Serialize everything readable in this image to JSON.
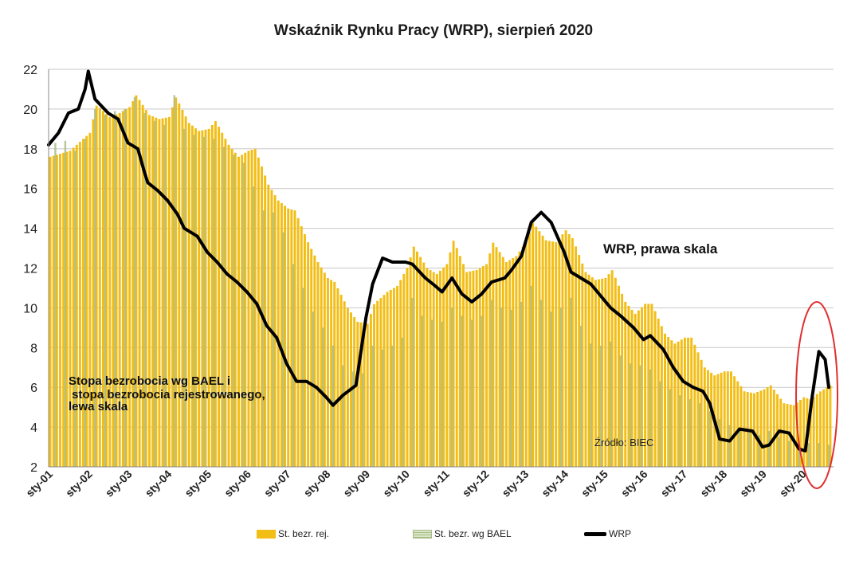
{
  "chart_data": {
    "type": "bar+line",
    "title": "Wskaźnik Rynku Pracy (WRP), sierpień 2020",
    "categories": [
      "sty-01",
      "sty-02",
      "sty-03",
      "sty-04",
      "sty-05",
      "sty-06",
      "sty-07",
      "sty-08",
      "sty-09",
      "sty-10",
      "sty-11",
      "sty-12",
      "sty-13",
      "sty-14",
      "sty-15",
      "sty-16",
      "sty-17",
      "sty-18",
      "sty-19",
      "sty-20"
    ],
    "ylim": [
      2,
      22
    ],
    "yticks": [
      2,
      4,
      6,
      8,
      10,
      12,
      14,
      16,
      18,
      20,
      22
    ],
    "grid": true,
    "x_start": 2001.0,
    "x_end": 2020.67,
    "series": [
      {
        "name": "St. bezr. rej.",
        "kind": "bar",
        "color": "#f2be16",
        "points": [
          [
            2001.0,
            17.6
          ],
          [
            2001.5,
            17.9
          ],
          [
            2002.0,
            18.8
          ],
          [
            2002.17,
            20.2
          ],
          [
            2002.5,
            19.6
          ],
          [
            2002.75,
            19.8
          ],
          [
            2003.0,
            20.1
          ],
          [
            2003.17,
            20.7
          ],
          [
            2003.5,
            19.7
          ],
          [
            2003.75,
            19.5
          ],
          [
            2004.0,
            19.6
          ],
          [
            2004.17,
            20.6
          ],
          [
            2004.5,
            19.3
          ],
          [
            2004.75,
            18.9
          ],
          [
            2005.0,
            19.0
          ],
          [
            2005.17,
            19.4
          ],
          [
            2005.5,
            18.2
          ],
          [
            2005.75,
            17.6
          ],
          [
            2006.0,
            17.9
          ],
          [
            2006.17,
            18.0
          ],
          [
            2006.5,
            16.2
          ],
          [
            2006.75,
            15.4
          ],
          [
            2007.0,
            15.0
          ],
          [
            2007.17,
            14.9
          ],
          [
            2007.5,
            13.3
          ],
          [
            2007.75,
            12.3
          ],
          [
            2008.0,
            11.5
          ],
          [
            2008.17,
            11.3
          ],
          [
            2008.5,
            10.0
          ],
          [
            2008.75,
            9.3
          ],
          [
            2009.0,
            9.2
          ],
          [
            2009.17,
            10.2
          ],
          [
            2009.5,
            10.8
          ],
          [
            2009.75,
            11.1
          ],
          [
            2010.0,
            12.0
          ],
          [
            2010.17,
            13.1
          ],
          [
            2010.5,
            12.0
          ],
          [
            2010.75,
            11.7
          ],
          [
            2011.0,
            12.2
          ],
          [
            2011.17,
            13.4
          ],
          [
            2011.5,
            11.8
          ],
          [
            2011.75,
            11.9
          ],
          [
            2012.0,
            12.2
          ],
          [
            2012.17,
            13.3
          ],
          [
            2012.5,
            12.3
          ],
          [
            2012.75,
            12.6
          ],
          [
            2013.0,
            13.3
          ],
          [
            2013.17,
            14.3
          ],
          [
            2013.5,
            13.4
          ],
          [
            2013.75,
            13.3
          ],
          [
            2014.0,
            13.9
          ],
          [
            2014.17,
            13.5
          ],
          [
            2014.5,
            11.8
          ],
          [
            2014.75,
            11.4
          ],
          [
            2015.0,
            11.5
          ],
          [
            2015.17,
            11.9
          ],
          [
            2015.5,
            10.3
          ],
          [
            2015.75,
            9.7
          ],
          [
            2016.0,
            10.2
          ],
          [
            2016.17,
            10.2
          ],
          [
            2016.5,
            8.7
          ],
          [
            2016.75,
            8.2
          ],
          [
            2017.0,
            8.5
          ],
          [
            2017.17,
            8.5
          ],
          [
            2017.5,
            7.0
          ],
          [
            2017.75,
            6.6
          ],
          [
            2018.0,
            6.8
          ],
          [
            2018.17,
            6.8
          ],
          [
            2018.5,
            5.8
          ],
          [
            2018.75,
            5.7
          ],
          [
            2019.0,
            5.9
          ],
          [
            2019.17,
            6.1
          ],
          [
            2019.5,
            5.2
          ],
          [
            2019.75,
            5.1
          ],
          [
            2020.0,
            5.5
          ],
          [
            2020.17,
            5.4
          ],
          [
            2020.42,
            5.8
          ],
          [
            2020.67,
            6.1
          ]
        ]
      },
      {
        "name": "St. bezr. wg BAEL",
        "kind": "bar",
        "color": "#a9bb86",
        "points": [
          [
            2001.17,
            18.3
          ],
          [
            2001.42,
            18.4
          ],
          [
            2001.67,
            17.9
          ],
          [
            2001.92,
            18.5
          ],
          [
            2002.17,
            20.0
          ],
          [
            2002.42,
            19.7
          ],
          [
            2002.67,
            19.9
          ],
          [
            2002.92,
            20.0
          ],
          [
            2003.17,
            20.6
          ],
          [
            2003.42,
            19.8
          ],
          [
            2003.67,
            19.4
          ],
          [
            2003.92,
            19.2
          ],
          [
            2004.17,
            20.7
          ],
          [
            2004.42,
            19.0
          ],
          [
            2004.67,
            18.7
          ],
          [
            2004.92,
            18.6
          ],
          [
            2005.17,
            18.5
          ],
          [
            2005.42,
            18.1
          ],
          [
            2005.67,
            17.7
          ],
          [
            2005.92,
            17.3
          ],
          [
            2006.17,
            16.1
          ],
          [
            2006.42,
            14.9
          ],
          [
            2006.67,
            14.8
          ],
          [
            2006.92,
            13.8
          ],
          [
            2007.17,
            12.2
          ],
          [
            2007.42,
            11.0
          ],
          [
            2007.67,
            9.8
          ],
          [
            2007.92,
            9.0
          ],
          [
            2008.17,
            8.1
          ],
          [
            2008.42,
            7.1
          ],
          [
            2008.67,
            6.8
          ],
          [
            2008.92,
            6.7
          ],
          [
            2009.17,
            8.1
          ],
          [
            2009.42,
            7.9
          ],
          [
            2009.67,
            8.1
          ],
          [
            2009.92,
            8.5
          ],
          [
            2010.17,
            10.5
          ],
          [
            2010.42,
            9.6
          ],
          [
            2010.67,
            9.4
          ],
          [
            2010.92,
            9.3
          ],
          [
            2011.17,
            10.0
          ],
          [
            2011.42,
            9.6
          ],
          [
            2011.67,
            9.4
          ],
          [
            2011.92,
            9.6
          ],
          [
            2012.17,
            10.4
          ],
          [
            2012.42,
            10.0
          ],
          [
            2012.67,
            9.9
          ],
          [
            2012.92,
            10.3
          ],
          [
            2013.17,
            11.1
          ],
          [
            2013.42,
            10.4
          ],
          [
            2013.67,
            9.8
          ],
          [
            2013.92,
            10.0
          ],
          [
            2014.17,
            10.5
          ],
          [
            2014.42,
            9.1
          ],
          [
            2014.67,
            8.2
          ],
          [
            2014.92,
            8.1
          ],
          [
            2015.17,
            8.3
          ],
          [
            2015.42,
            7.6
          ],
          [
            2015.67,
            7.2
          ],
          [
            2015.92,
            7.1
          ],
          [
            2016.17,
            6.9
          ],
          [
            2016.42,
            6.3
          ],
          [
            2016.67,
            5.9
          ],
          [
            2016.92,
            5.6
          ],
          [
            2017.17,
            5.4
          ],
          [
            2017.42,
            5.2
          ],
          [
            2017.67,
            4.8
          ],
          [
            2017.92,
            4.4
          ],
          [
            2018.17,
            4.1
          ],
          [
            2018.42,
            3.9
          ],
          [
            2018.67,
            3.8
          ],
          [
            2018.92,
            3.6
          ],
          [
            2019.17,
            3.8
          ],
          [
            2019.42,
            3.5
          ],
          [
            2019.67,
            3.3
          ],
          [
            2019.92,
            3.1
          ],
          [
            2020.17,
            3.2
          ],
          [
            2020.42,
            3.2
          ],
          [
            2020.67,
            3.1
          ]
        ]
      },
      {
        "name": "WRP",
        "kind": "line",
        "color": "#000000",
        "points": [
          [
            2001.0,
            18.2
          ],
          [
            2001.25,
            18.8
          ],
          [
            2001.5,
            19.8
          ],
          [
            2001.75,
            20.0
          ],
          [
            2001.92,
            21.0
          ],
          [
            2002.0,
            21.9
          ],
          [
            2002.17,
            20.5
          ],
          [
            2002.5,
            19.8
          ],
          [
            2002.75,
            19.5
          ],
          [
            2003.0,
            18.3
          ],
          [
            2003.25,
            18.0
          ],
          [
            2003.42,
            16.8
          ],
          [
            2003.5,
            16.3
          ],
          [
            2003.75,
            15.9
          ],
          [
            2004.0,
            15.4
          ],
          [
            2004.25,
            14.7
          ],
          [
            2004.42,
            14.0
          ],
          [
            2004.75,
            13.6
          ],
          [
            2005.0,
            12.8
          ],
          [
            2005.25,
            12.3
          ],
          [
            2005.5,
            11.7
          ],
          [
            2005.75,
            11.3
          ],
          [
            2006.0,
            10.8
          ],
          [
            2006.25,
            10.2
          ],
          [
            2006.5,
            9.1
          ],
          [
            2006.75,
            8.5
          ],
          [
            2007.0,
            7.2
          ],
          [
            2007.25,
            6.3
          ],
          [
            2007.5,
            6.3
          ],
          [
            2007.75,
            6.0
          ],
          [
            2008.0,
            5.5
          ],
          [
            2008.17,
            5.1
          ],
          [
            2008.42,
            5.6
          ],
          [
            2008.75,
            6.1
          ],
          [
            2009.0,
            9.5
          ],
          [
            2009.17,
            11.2
          ],
          [
            2009.42,
            12.5
          ],
          [
            2009.67,
            12.3
          ],
          [
            2010.0,
            12.3
          ],
          [
            2010.17,
            12.2
          ],
          [
            2010.5,
            11.5
          ],
          [
            2010.75,
            11.1
          ],
          [
            2010.92,
            10.8
          ],
          [
            2011.17,
            11.5
          ],
          [
            2011.42,
            10.7
          ],
          [
            2011.67,
            10.3
          ],
          [
            2011.92,
            10.7
          ],
          [
            2012.17,
            11.3
          ],
          [
            2012.5,
            11.5
          ],
          [
            2012.67,
            11.9
          ],
          [
            2012.92,
            12.6
          ],
          [
            2013.17,
            14.3
          ],
          [
            2013.42,
            14.8
          ],
          [
            2013.67,
            14.3
          ],
          [
            2014.0,
            12.8
          ],
          [
            2014.17,
            11.8
          ],
          [
            2014.42,
            11.5
          ],
          [
            2014.67,
            11.2
          ],
          [
            2014.92,
            10.6
          ],
          [
            2015.17,
            10.0
          ],
          [
            2015.42,
            9.6
          ],
          [
            2015.75,
            9.0
          ],
          [
            2016.0,
            8.4
          ],
          [
            2016.17,
            8.6
          ],
          [
            2016.5,
            7.9
          ],
          [
            2016.75,
            7.0
          ],
          [
            2017.0,
            6.3
          ],
          [
            2017.25,
            6.0
          ],
          [
            2017.5,
            5.8
          ],
          [
            2017.67,
            5.2
          ],
          [
            2017.92,
            3.4
          ],
          [
            2018.17,
            3.3
          ],
          [
            2018.42,
            3.9
          ],
          [
            2018.75,
            3.8
          ],
          [
            2019.0,
            3.0
          ],
          [
            2019.17,
            3.1
          ],
          [
            2019.42,
            3.8
          ],
          [
            2019.67,
            3.7
          ],
          [
            2019.92,
            2.9
          ],
          [
            2020.08,
            2.8
          ],
          [
            2020.25,
            5.5
          ],
          [
            2020.42,
            7.8
          ],
          [
            2020.58,
            7.4
          ],
          [
            2020.67,
            6.0
          ]
        ]
      }
    ],
    "annotations": {
      "wrp_label": "WRP, prawa skala",
      "left_scale_label_1": "Stopa bezrobocia wg BAEL i",
      "left_scale_label_2": " stopa bezrobocia rejestrowanego,",
      "left_scale_label_3": "lewa skala",
      "source": "Źródło: BIEC",
      "highlight": "red-ellipse-around-2020"
    },
    "legend": {
      "position": "bottom",
      "items": [
        "St. bezr. rej.",
        "St. bezr. wg BAEL",
        "WRP"
      ]
    }
  },
  "colors": {
    "bar_registered": "#f2be16",
    "bar_bael": "#a9bb86",
    "line_wrp": "#000000",
    "highlight": "#e03030",
    "grid": "#c8c8c8"
  }
}
